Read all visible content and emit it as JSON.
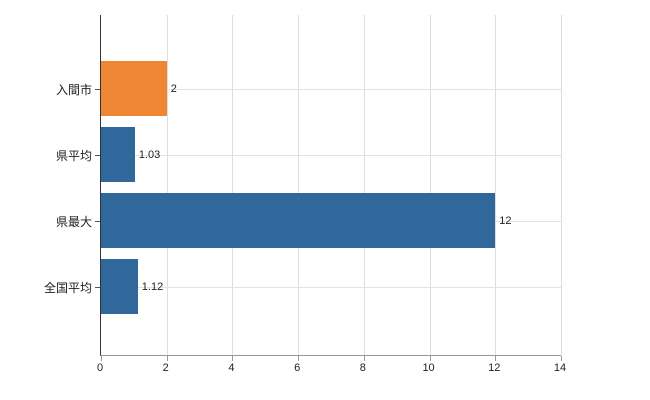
{
  "chart_data": {
    "type": "bar",
    "orientation": "horizontal",
    "title": "",
    "xlabel": "",
    "ylabel": "",
    "categories": [
      "入間市",
      "県平均",
      "県最大",
      "全国平均"
    ],
    "values": [
      2,
      1.03,
      12,
      1.12
    ],
    "value_labels": [
      "2",
      "1.03",
      "12",
      "1.12"
    ],
    "bar_colors": [
      "#ee8633",
      "#31689b",
      "#31689b",
      "#31689b"
    ],
    "xlim": [
      0,
      14
    ],
    "x_ticks": [
      0,
      2,
      4,
      6,
      8,
      10,
      12,
      14
    ],
    "x_tick_labels": [
      "0",
      "2",
      "4",
      "6",
      "8",
      "10",
      "12",
      "14"
    ],
    "grid": true,
    "legend": "none"
  },
  "style": {
    "bar_blue": "#31689b",
    "bar_orange": "#ee8633",
    "gridline_color": "#dddddd",
    "left_axis_color": "#333333",
    "bottom_axis_color": "#999999",
    "label_color": "#222222",
    "background": "#ffffff"
  }
}
